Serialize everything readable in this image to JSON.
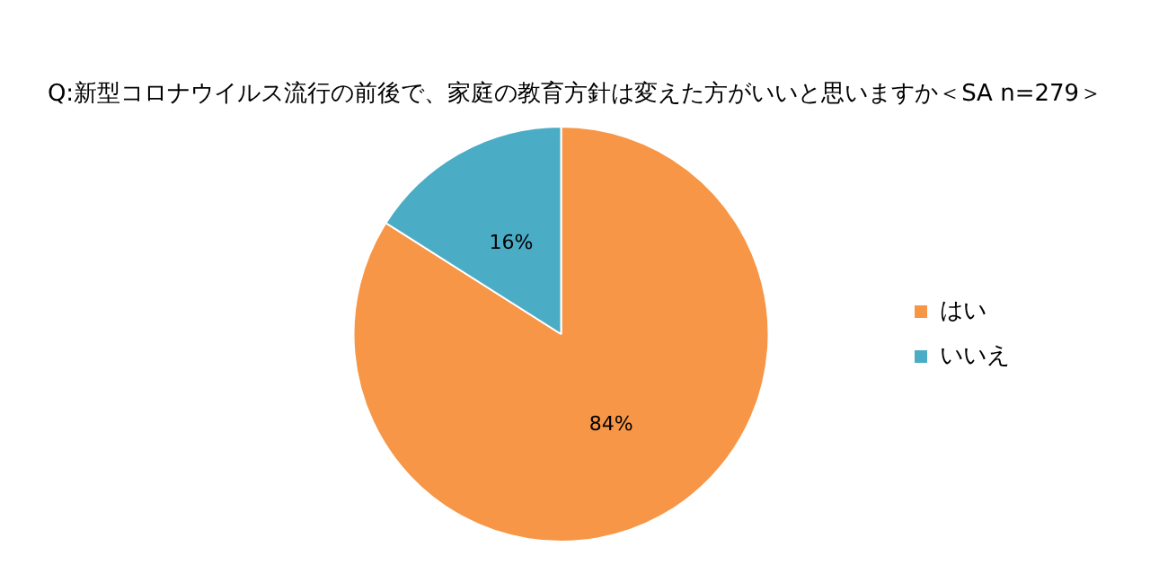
{
  "chart_data": {
    "type": "pie",
    "title": "Q:新型コロナウイルス流行の前後で、家庭の教育方針は変えた方がいいと思いますか＜SA n=279＞",
    "categories": [
      "はい",
      "いいえ"
    ],
    "values": [
      84,
      16
    ],
    "colors": [
      "#f79646",
      "#4bacc6"
    ],
    "value_labels": [
      "84%",
      "16%"
    ],
    "legend": "right"
  }
}
